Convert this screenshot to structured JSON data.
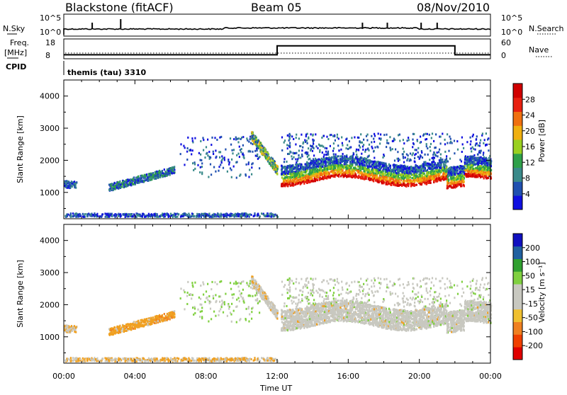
{
  "header": {
    "station": "Blackstone (fitACF)",
    "beam": "Beam 05",
    "date": "08/Nov/2010"
  },
  "colors": {
    "axis": "#000000",
    "power_scale": [
      "#1010e0",
      "#2050b0",
      "#3a8a8a",
      "#2fa04a",
      "#9ad020",
      "#f0b010",
      "#f07010",
      "#e82010",
      "#d00000"
    ],
    "velocity_scale": [
      "#e00000",
      "#f04000",
      "#f08020",
      "#f0c030",
      "#c8c8c0",
      "#c8c8c0",
      "#80d040",
      "#30a030",
      "#2060a0",
      "#1010c0"
    ],
    "ground_scatter": "#c8c8c0"
  },
  "strip_nsky": {
    "left_label": "N.Sky",
    "right_label": "N.Search",
    "left_ticks": [
      "10^5",
      "10^0"
    ],
    "right_ticks": [
      "10^5",
      "10^0"
    ]
  },
  "strip_freq": {
    "left_label_1": "Freq.",
    "left_label_2": "[MHz]",
    "cpid_label": "CPID",
    "left_ticks": [
      "18",
      "8"
    ],
    "right_ticks": [
      "60",
      "0"
    ],
    "right_label": "Nave",
    "freq_low_mhz": 10,
    "freq_high_mhz": 14.5,
    "freq_high_start_h": 12,
    "freq_high_end_h": 22
  },
  "cpid_text": "themis (tau) 3310",
  "chart_data": [
    {
      "type": "heatmap",
      "title": "",
      "parameter": "Power",
      "colorbar_label": "Power [dB]",
      "colorbar_ticks": [
        "28",
        "24",
        "20",
        "16",
        "12",
        "8",
        "4"
      ],
      "colorbar_range": [
        0,
        32
      ],
      "ylabel": "Slant Range [km]",
      "y_ticks": [
        "4000",
        "3000",
        "2000",
        "1000"
      ],
      "ylim": [
        180,
        4500
      ],
      "xlim_hours": [
        0,
        24
      ],
      "scatter_bands_km": [
        {
          "x_range_h": [
            0,
            0.7
          ],
          "range_km": [
            1100,
            1300
          ],
          "level": "low"
        },
        {
          "x_range_h": [
            2.5,
            6.2
          ],
          "range_km": [
            1000,
            1700
          ],
          "level": "low"
        },
        {
          "x_range_h": [
            8.0,
            11.0
          ],
          "range_km": [
            1500,
            2600
          ],
          "level": "low"
        },
        {
          "x_range_h": [
            11.5,
            12.0
          ],
          "range_km": [
            1500,
            2300
          ],
          "level": "high"
        },
        {
          "x_range_h": [
            12.2,
            24
          ],
          "range_km": [
            900,
            1800
          ],
          "level": "high"
        },
        {
          "x_range_h": [
            0,
            12
          ],
          "range_km": [
            190,
            300
          ],
          "level": "low"
        }
      ]
    },
    {
      "type": "heatmap",
      "title": "",
      "parameter": "Velocity",
      "colorbar_label": "Velocity [m s⁻¹]",
      "colorbar_ticks": [
        "200",
        "100",
        "50",
        "15",
        "-15",
        "-50",
        "-100",
        "-200"
      ],
      "colorbar_range": [
        -250,
        250
      ],
      "ylabel": "Slant Range [km]",
      "y_ticks": [
        "4000",
        "3000",
        "2000",
        "1000"
      ],
      "ylim": [
        180,
        4500
      ],
      "xlim_hours": [
        0,
        24
      ]
    }
  ],
  "time_axis": {
    "label": "Time UT",
    "ticks": [
      "00:00",
      "04:00",
      "08:00",
      "12:00",
      "16:00",
      "20:00",
      "00:00"
    ]
  }
}
